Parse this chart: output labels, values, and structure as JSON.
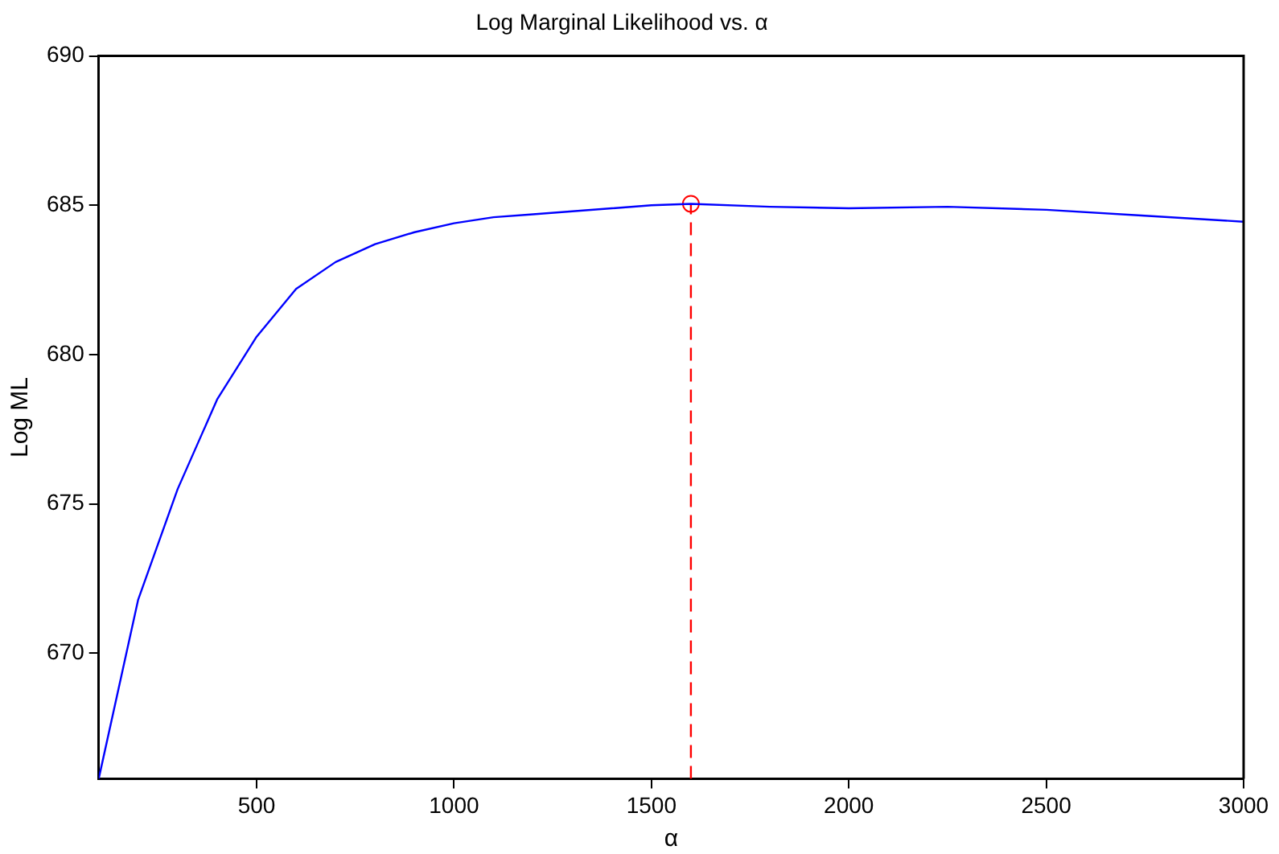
{
  "chart_data": {
    "type": "line",
    "title": "Log Marginal Likelihood vs. α",
    "xlabel": "α",
    "ylabel": "Log ML",
    "xlim": [
      100,
      3000
    ],
    "xticks": [
      500,
      1000,
      1500,
      2000,
      2500,
      3000
    ],
    "ylim": [
      665.8,
      690
    ],
    "yticks": [
      670,
      675,
      680,
      685,
      690
    ],
    "grid": false,
    "legend": false,
    "series": [
      {
        "color": "#0000ff",
        "marker": "none",
        "line_style": "solid",
        "x": [
          100,
          200,
          300,
          400,
          500,
          600,
          700,
          800,
          900,
          1000,
          1100,
          1200,
          1300,
          1400,
          1500,
          1600,
          1800,
          2000,
          2250,
          2500,
          2750,
          3000
        ],
        "values": [
          665.8,
          671.8,
          675.5,
          678.5,
          680.6,
          682.2,
          683.1,
          683.7,
          684.1,
          684.4,
          684.6,
          684.7,
          684.8,
          684.9,
          685.0,
          685.05,
          684.95,
          684.9,
          684.95,
          684.85,
          684.65,
          684.45
        ]
      },
      {
        "type": "line",
        "color": "#ff0000",
        "marker": "none",
        "line_style": "dashed",
        "x": [
          1600,
          1600
        ],
        "values": [
          665.8,
          685.05
        ]
      },
      {
        "type": "scatter",
        "color": "#ff0000",
        "marker": "circle",
        "x": [
          1600
        ],
        "values": [
          685.05
        ]
      }
    ]
  }
}
